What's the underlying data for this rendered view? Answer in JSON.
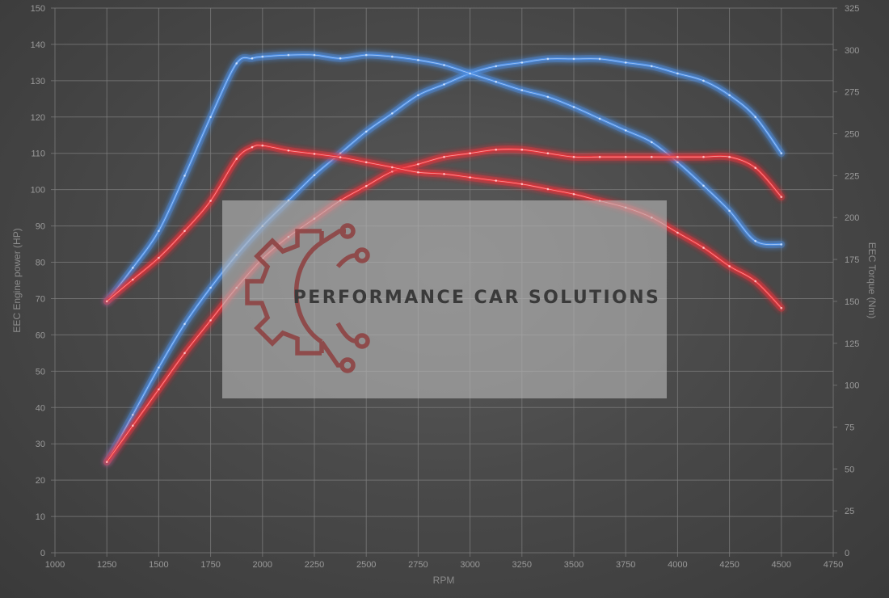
{
  "chart_data": {
    "type": "line",
    "xlabel": "RPM",
    "ylabel_left": "EEC Engine power (HP)",
    "ylabel_right": "EEC Torque (Nm)",
    "xlim": [
      1000,
      4750
    ],
    "ylim_left": [
      0,
      150
    ],
    "ylim_right": [
      0,
      325
    ],
    "x_ticks": [
      1000,
      1250,
      1500,
      1750,
      2000,
      2250,
      2500,
      2750,
      3000,
      3250,
      3500,
      3750,
      4000,
      4250,
      4500,
      4750
    ],
    "y_left_ticks": [
      0,
      10,
      20,
      30,
      40,
      50,
      60,
      70,
      80,
      90,
      100,
      110,
      120,
      130,
      140,
      150
    ],
    "y_right_ticks": [
      0,
      25,
      50,
      75,
      100,
      125,
      150,
      175,
      200,
      225,
      250,
      275,
      300,
      325
    ],
    "grid": true,
    "colors": {
      "tuned": "#4d8fe6",
      "stock": "#e8343a"
    },
    "series": [
      {
        "color": "tuned",
        "axis": "left",
        "x": [
          1250,
          1375,
          1500,
          1625,
          1750,
          1875,
          2000,
          2125,
          2250,
          2375,
          2500,
          2625,
          2750,
          2875,
          3000,
          3125,
          3250,
          3375,
          3500,
          3625,
          3750,
          3875,
          4000,
          4125,
          4250,
          4375,
          4500
        ],
        "y": [
          25,
          38,
          51,
          63,
          73,
          82,
          90,
          97,
          104,
          110,
          116,
          121,
          126,
          129,
          132,
          134,
          135,
          136,
          136,
          136,
          135,
          134,
          132,
          130,
          126,
          120,
          110
        ]
      },
      {
        "color": "tuned",
        "axis": "right",
        "x": [
          1250,
          1375,
          1500,
          1625,
          1750,
          1875,
          1950,
          2000,
          2125,
          2250,
          2375,
          2500,
          2625,
          2750,
          2875,
          3000,
          3125,
          3250,
          3375,
          3500,
          3625,
          3750,
          3875,
          4000,
          4125,
          4250,
          4375,
          4500
        ],
        "y": [
          150,
          170,
          192,
          225,
          260,
          292,
          295,
          296,
          297,
          297,
          295,
          297,
          296,
          294,
          291,
          286,
          281,
          276,
          272,
          266,
          259,
          252,
          245,
          233,
          219,
          204,
          186,
          184
        ]
      },
      {
        "color": "stock",
        "axis": "left",
        "x": [
          1250,
          1375,
          1500,
          1625,
          1750,
          1875,
          2000,
          2125,
          2250,
          2375,
          2500,
          2625,
          2750,
          2875,
          3000,
          3125,
          3250,
          3375,
          3500,
          3625,
          3750,
          3875,
          4000,
          4125,
          4250,
          4375,
          4500
        ],
        "y": [
          25,
          35,
          45,
          55,
          64,
          73,
          81,
          87,
          92,
          97,
          101,
          105,
          107,
          109,
          110,
          111,
          111,
          110,
          109,
          109,
          109,
          109,
          109,
          109,
          109,
          106,
          98
        ]
      },
      {
        "color": "stock",
        "axis": "right",
        "x": [
          1250,
          1375,
          1500,
          1625,
          1750,
          1875,
          1950,
          2000,
          2125,
          2250,
          2375,
          2500,
          2625,
          2750,
          2875,
          3000,
          3125,
          3250,
          3375,
          3500,
          3625,
          3750,
          3875,
          4000,
          4125,
          4250,
          4375,
          4500
        ],
        "y": [
          150,
          163,
          176,
          192,
          210,
          235,
          242,
          243,
          240,
          238,
          236,
          233,
          230,
          227,
          226,
          224,
          222,
          220,
          217,
          214,
          210,
          206,
          200,
          191,
          182,
          171,
          162,
          146
        ]
      }
    ]
  },
  "watermark": {
    "text": "PERFORMANCE CAR SOLUTIONS"
  }
}
